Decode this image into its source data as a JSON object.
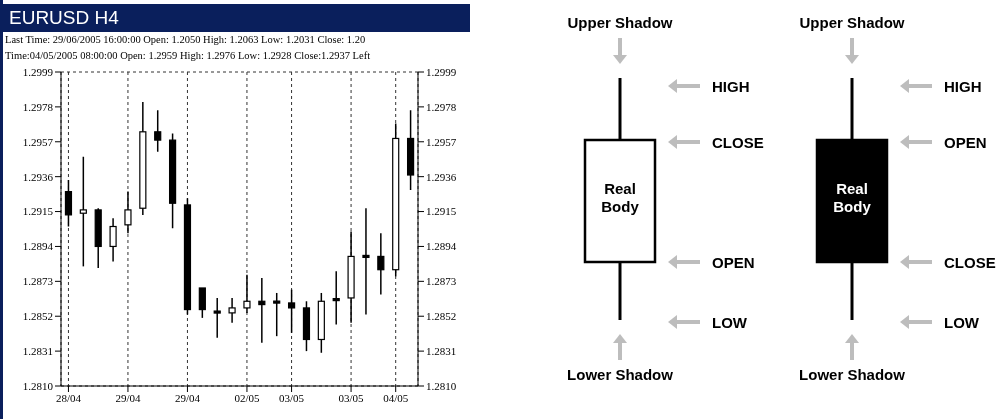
{
  "chart_data": [
    {
      "type": "candlestick",
      "title": "EURUSD H4",
      "subtitle": "Last Time: 29/06/2005 16:00:00  Open: 1.2050  High: 1.2063  Low: 1.2031  Close: 1.20",
      "annotations": [
        "Time:04/05/2005 08:00:00 Open: 1.2959 High: 1.2976 Low: 1.2928 Close:1.2937 Left"
      ],
      "categories": [
        "28/04",
        null,
        null,
        null,
        "29/04",
        null,
        null,
        null,
        "29/04",
        null,
        null,
        null,
        "02/05",
        null,
        null,
        "03/05",
        null,
        null,
        null,
        "03/05",
        null,
        null,
        "04/05",
        null
      ],
      "ohlc": [
        [
          1.2927,
          1.2934,
          1.2906,
          1.2913
        ],
        [
          1.2914,
          1.2948,
          1.2882,
          1.2916
        ],
        [
          1.2916,
          1.2917,
          1.2881,
          1.2894
        ],
        [
          1.2894,
          1.2911,
          1.2885,
          1.2906
        ],
        [
          1.2907,
          1.2927,
          1.2902,
          1.2916
        ],
        [
          1.2917,
          1.2981,
          1.2913,
          1.2963
        ],
        [
          1.2963,
          1.2976,
          1.2951,
          1.2958
        ],
        [
          1.2958,
          1.2962,
          1.2905,
          1.292
        ],
        [
          1.2919,
          1.2923,
          1.2853,
          1.2856
        ],
        [
          1.2869,
          1.2869,
          1.2851,
          1.2856
        ],
        [
          1.2855,
          1.2863,
          1.2839,
          1.2854
        ],
        [
          1.2854,
          1.2863,
          1.2848,
          1.2857
        ],
        [
          1.2857,
          1.2877,
          1.2854,
          1.2861
        ],
        [
          1.2861,
          1.2875,
          1.2836,
          1.2859
        ],
        [
          1.2861,
          1.2866,
          1.284,
          1.286
        ],
        [
          1.286,
          1.2868,
          1.2842,
          1.2857
        ],
        [
          1.2857,
          1.2861,
          1.2831,
          1.2838
        ],
        [
          1.2838,
          1.2866,
          1.283,
          1.2861
        ],
        [
          1.2862,
          1.2879,
          1.2847,
          1.2862
        ],
        [
          1.2863,
          1.2903,
          1.2848,
          1.2888
        ],
        [
          1.2888,
          1.2917,
          1.2853,
          1.2888
        ],
        [
          1.2888,
          1.2902,
          1.2865,
          1.288
        ],
        [
          1.288,
          1.2968,
          1.2876,
          1.2959
        ],
        [
          1.2959,
          1.2976,
          1.2928,
          1.2937
        ]
      ],
      "colors": [
        "#000000",
        "#ffffff",
        "#000000",
        "#ffffff",
        "#ffffff",
        "#ffffff",
        "#000000",
        "#000000",
        "#000000",
        "#000000",
        "#000000",
        "#ffffff",
        "#ffffff",
        "#000000",
        "#000000",
        "#000000",
        "#000000",
        "#ffffff",
        "#000000",
        "#ffffff",
        "#000000",
        "#000000",
        "#ffffff",
        "#000000"
      ],
      "ylim": [
        1.281,
        1.2999
      ],
      "yticks": [
        {
          "value": 1.281,
          "label": "1.2810"
        },
        1.2831,
        1.2852,
        1.2873,
        1.2894,
        1.2915,
        1.2936,
        1.2957,
        1.2978,
        1.2999
      ],
      "y2lim": [
        1.281,
        1.2999
      ],
      "y2ticks": [
        {
          "value": 1.281,
          "label": "1.2810"
        },
        1.2831,
        1.2852,
        1.2873,
        1.2894,
        1.2915,
        1.2936,
        1.2957,
        1.2978,
        1.2999
      ],
      "grid": true,
      "line_style": "dashed"
    },
    {
      "type": "other",
      "annotations": [
        "Upper Shadow",
        "HIGH",
        "CLOSE",
        "Real Body",
        "OPEN",
        "LOW",
        "Lower Shadow",
        "Upper Shadow",
        "HIGH",
        "OPEN",
        "Real Body",
        "CLOSE",
        "LOW",
        "Lower Shadow"
      ]
    }
  ]
}
